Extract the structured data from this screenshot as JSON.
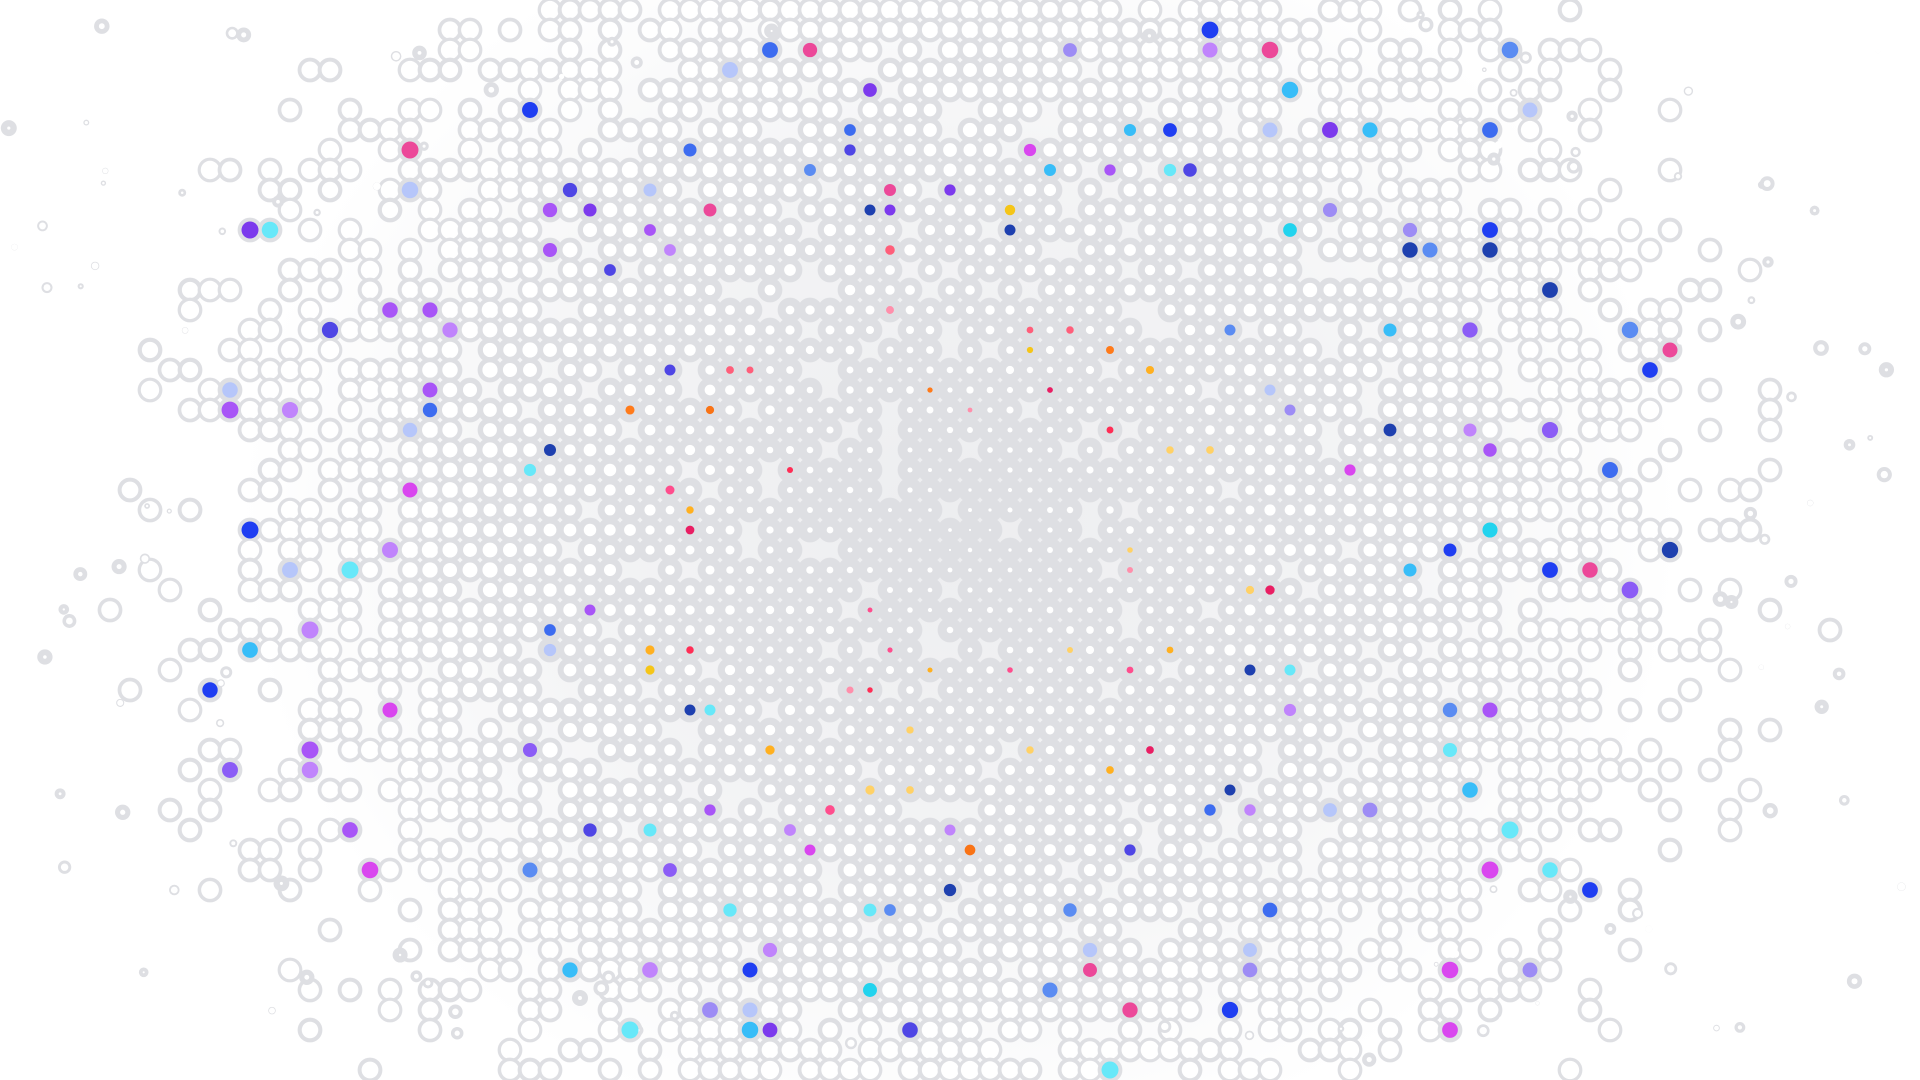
{
  "palette": {
    "background": "#ffffff",
    "grid_grey": "#dedfe3",
    "hole_white": "#ffffff",
    "outer_colors": [
      "#1f3ef2",
      "#3d6cf0",
      "#5b8cf2",
      "#8b5cf6",
      "#7c3aed",
      "#a855f7",
      "#c084fc",
      "#d946ef",
      "#ec4899",
      "#22d3ee",
      "#67e8f9",
      "#38bdf8",
      "#1e40af",
      "#4f46e5",
      "#9d8cf5",
      "#b6c6fa"
    ],
    "inner_colors": [
      "#ff2d55",
      "#ff7a1a",
      "#ffb020",
      "#f5c518",
      "#ff4d8d",
      "#ff5e7a",
      "#e91e63",
      "#ff8fab",
      "#f97316",
      "#ffd166"
    ]
  },
  "pattern": {
    "kind": "halftone-radial-dots",
    "icon": "dot-pattern-icon"
  }
}
